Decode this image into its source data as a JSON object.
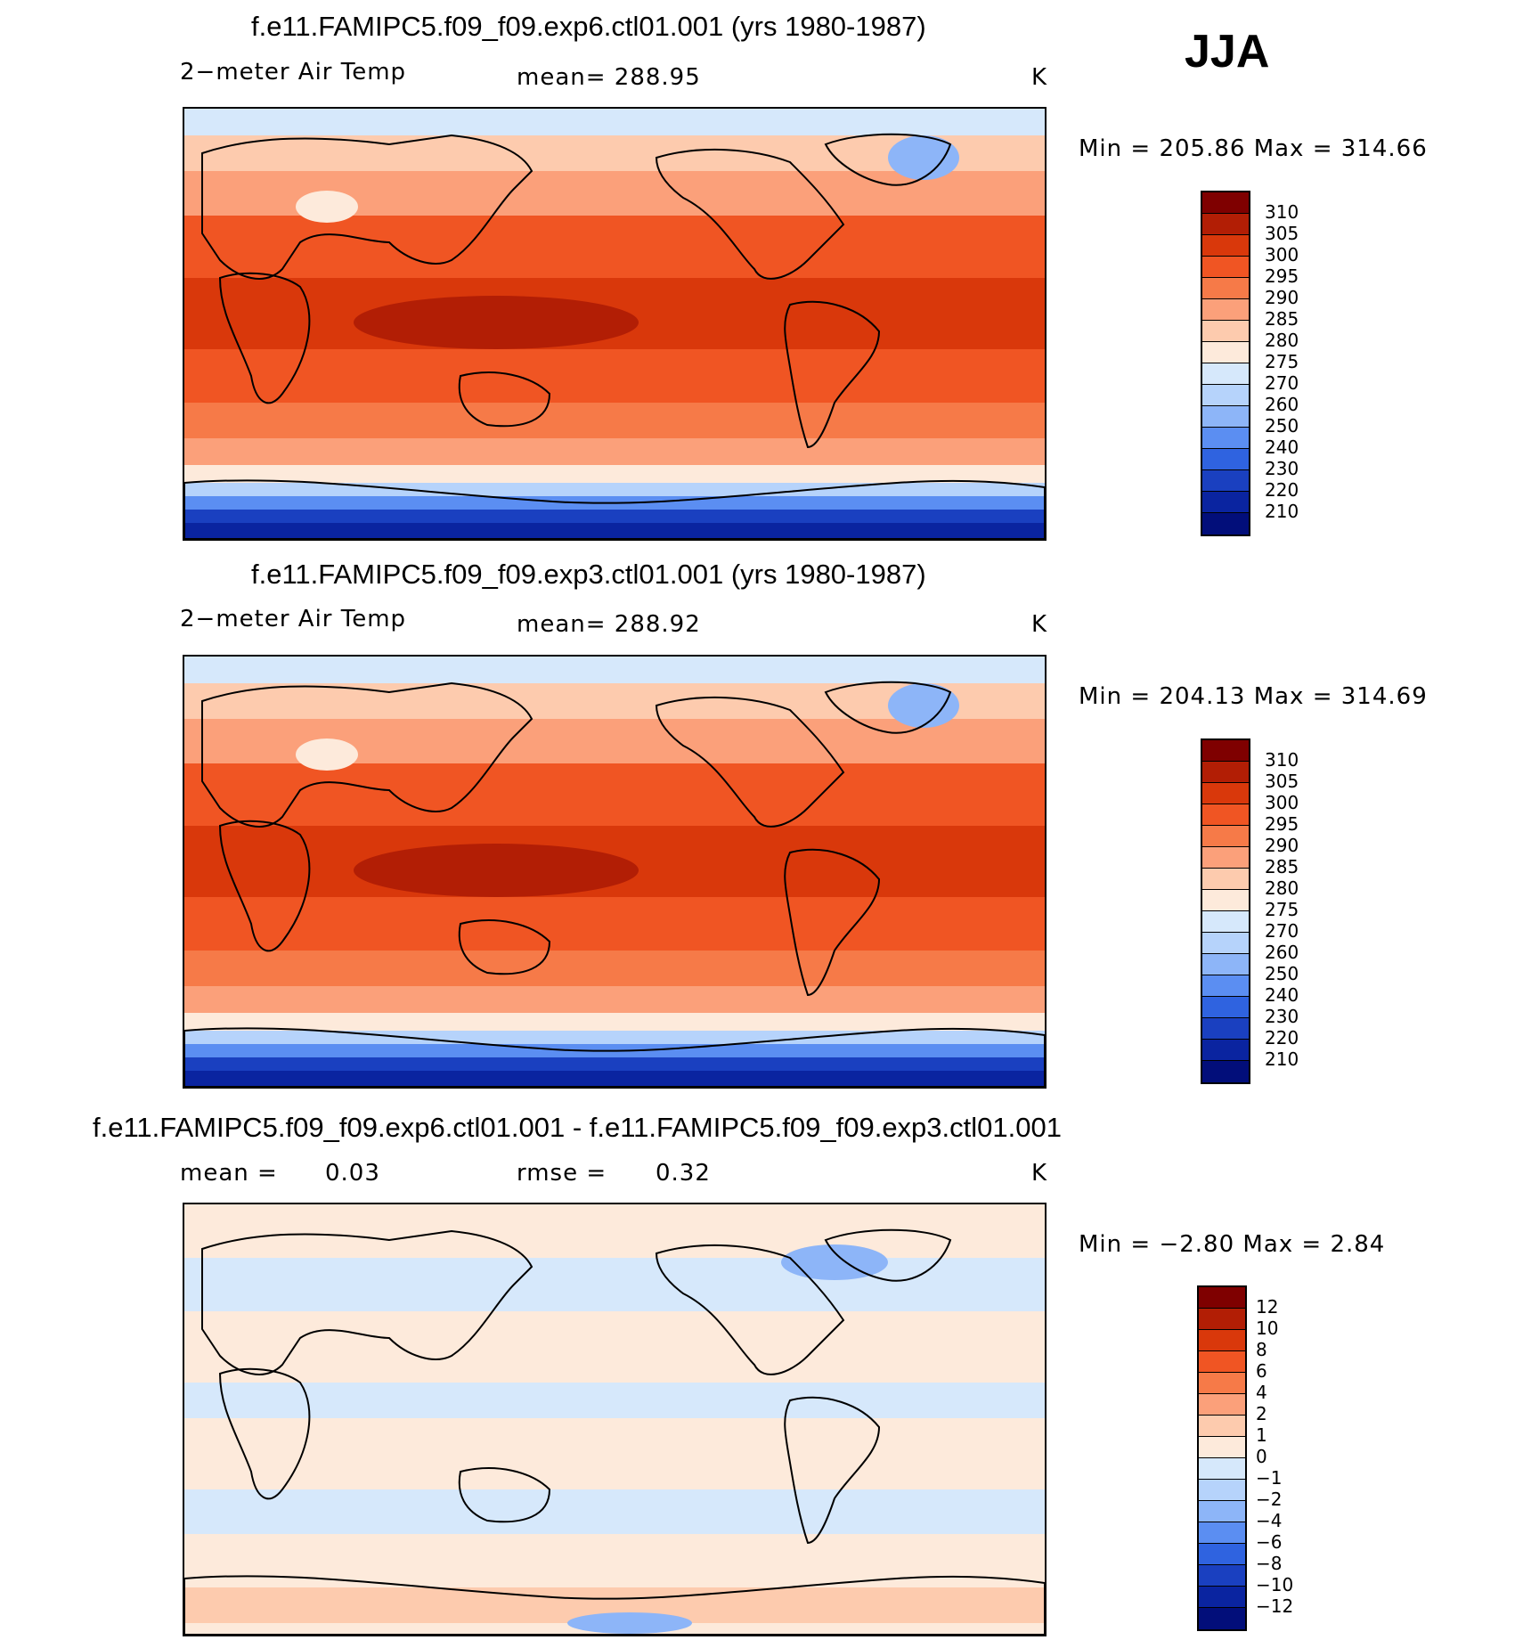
{
  "season": "JJA",
  "panels": [
    {
      "title": "f.e11.FAMIPC5.f09_f09.exp6.ctl01.001 (yrs 1980-1987)",
      "variable": "2−meter Air Temp",
      "stat_text": "mean= 288.95",
      "units": "K",
      "minmax": "Min  =  205.86  Max  =  314.66",
      "colorbar_labels": [
        "310",
        "305",
        "300",
        "295",
        "290",
        "285",
        "280",
        "275",
        "270",
        "260",
        "250",
        "240",
        "230",
        "220",
        "210"
      ],
      "kind": "abs"
    },
    {
      "title": "f.e11.FAMIPC5.f09_f09.exp3.ctl01.001 (yrs 1980-1987)",
      "variable": "2−meter Air Temp",
      "stat_text": "mean= 288.92",
      "units": "K",
      "minmax": "Min  =  204.13  Max  =  314.69",
      "colorbar_labels": [
        "310",
        "305",
        "300",
        "295",
        "290",
        "285",
        "280",
        "275",
        "270",
        "260",
        "250",
        "240",
        "230",
        "220",
        "210"
      ],
      "kind": "abs"
    },
    {
      "title": "f.e11.FAMIPC5.f09_f09.exp6.ctl01.001 - f.e11.FAMIPC5.f09_f09.exp3.ctl01.001",
      "mean_label": "mean =",
      "mean_value": "0.03",
      "rmse_label": "rmse =",
      "rmse_value": "0.32",
      "units": "K",
      "minmax": "Min  =   −2.80  Max  =     2.84",
      "colorbar_labels": [
        "12",
        "10",
        "8",
        "6",
        "4",
        "2",
        "1",
        "0",
        "−1",
        "−2",
        "−4",
        "−6",
        "−8",
        "−10",
        "−12"
      ],
      "kind": "diff"
    }
  ],
  "colors": {
    "scale": [
      "#7f0000",
      "#b21e05",
      "#d9380b",
      "#f05523",
      "#f67a48",
      "#fba07a",
      "#fdcbae",
      "#fdeadb",
      "#d6e8fb",
      "#b6d3fb",
      "#8db5f8",
      "#5b8ef2",
      "#2f63e0",
      "#1a40c0",
      "#0a24a0",
      "#020e7a"
    ]
  },
  "chart_data": [
    {
      "type": "heatmap",
      "title": "f.e11.FAMIPC5.f09_f09.exp6.ctl01.001 (yrs 1980-1987)",
      "variable": "2-meter Air Temp",
      "units": "K",
      "mean": 288.95,
      "min": 205.86,
      "max": 314.66,
      "contour_levels": [
        210,
        220,
        230,
        240,
        250,
        260,
        270,
        275,
        280,
        285,
        290,
        295,
        300,
        305,
        310
      ],
      "season": "JJA"
    },
    {
      "type": "heatmap",
      "title": "f.e11.FAMIPC5.f09_f09.exp3.ctl01.001 (yrs 1980-1987)",
      "variable": "2-meter Air Temp",
      "units": "K",
      "mean": 288.92,
      "min": 204.13,
      "max": 314.69,
      "contour_levels": [
        210,
        220,
        230,
        240,
        250,
        260,
        270,
        275,
        280,
        285,
        290,
        295,
        300,
        305,
        310
      ],
      "season": "JJA"
    },
    {
      "type": "heatmap",
      "title": "f.e11.FAMIPC5.f09_f09.exp6.ctl01.001 - f.e11.FAMIPC5.f09_f09.exp3.ctl01.001",
      "units": "K",
      "mean": 0.03,
      "rmse": 0.32,
      "min": -2.8,
      "max": 2.84,
      "contour_levels": [
        -12,
        -10,
        -8,
        -6,
        -4,
        -2,
        -1,
        0,
        1,
        2,
        4,
        6,
        8,
        10,
        12
      ],
      "season": "JJA"
    }
  ]
}
